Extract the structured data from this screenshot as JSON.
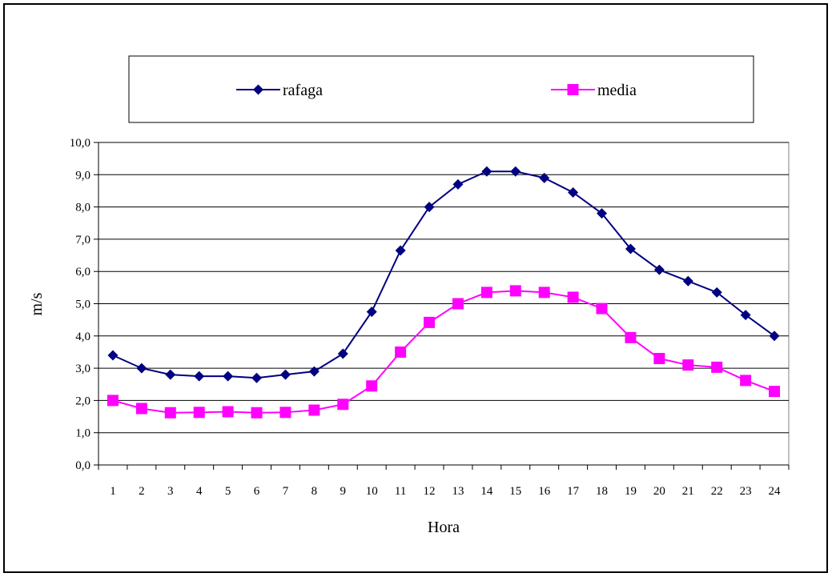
{
  "chart_data": {
    "type": "line",
    "xlabel": "Hora",
    "ylabel": "m/s",
    "ylim": [
      0,
      10
    ],
    "y_ticks": [
      "0,0",
      "1,0",
      "2,0",
      "3,0",
      "4,0",
      "5,0",
      "6,0",
      "7,0",
      "8,0",
      "9,0",
      "10,0"
    ],
    "categories": [
      "1",
      "2",
      "3",
      "4",
      "5",
      "6",
      "7",
      "8",
      "9",
      "10",
      "11",
      "12",
      "13",
      "14",
      "15",
      "16",
      "17",
      "18",
      "19",
      "20",
      "21",
      "22",
      "23",
      "24"
    ],
    "grid": true,
    "legend_position": "top",
    "series": [
      {
        "name": "rafaga",
        "color": "#000080",
        "marker": "diamond",
        "values": [
          3.4,
          3.0,
          2.8,
          2.75,
          2.75,
          2.7,
          2.8,
          2.9,
          3.45,
          4.75,
          6.65,
          8.0,
          8.7,
          9.1,
          9.1,
          8.9,
          8.45,
          7.8,
          6.7,
          6.05,
          5.7,
          5.35,
          4.65,
          4.0
        ]
      },
      {
        "name": "media",
        "color": "#FF00FF",
        "marker": "square",
        "values": [
          2.0,
          1.75,
          1.62,
          1.63,
          1.65,
          1.62,
          1.63,
          1.7,
          1.88,
          2.45,
          3.5,
          4.42,
          5.0,
          5.35,
          5.4,
          5.35,
          5.2,
          4.85,
          3.95,
          3.3,
          3.1,
          3.03,
          2.62,
          2.28
        ]
      }
    ]
  }
}
